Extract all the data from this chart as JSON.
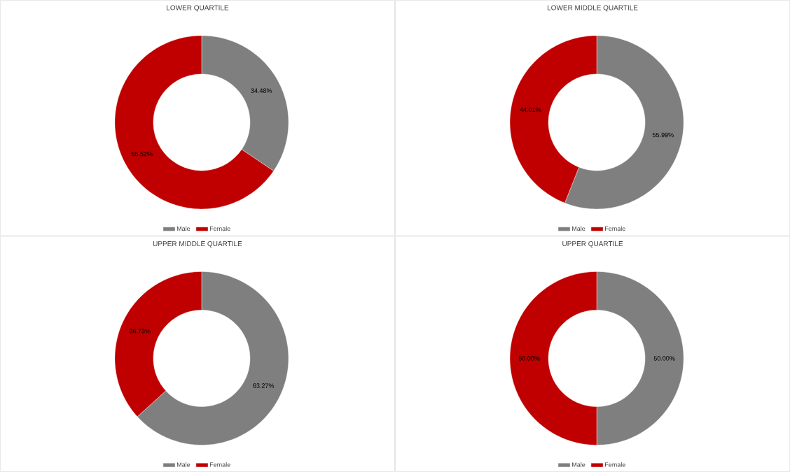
{
  "chart_data": [
    {
      "type": "donut",
      "title": "LOWER QUARTILE",
      "categories": [
        "Male",
        "Female"
      ],
      "values": [
        34.48,
        65.52
      ],
      "colors": [
        "#7f7f7f",
        "#c00000"
      ],
      "value_labels": [
        "34.48%",
        "65.52%"
      ],
      "legend": "bottom"
    },
    {
      "type": "donut",
      "title": "LOWER MIDDLE QUARTILE",
      "categories": [
        "Male",
        "Female"
      ],
      "values": [
        55.99,
        44.01
      ],
      "colors": [
        "#7f7f7f",
        "#c00000"
      ],
      "value_labels": [
        "55.99%",
        "44.01%"
      ],
      "legend": "bottom"
    },
    {
      "type": "donut",
      "title": "UPPER MIDDLE QUARTILE",
      "categories": [
        "Male",
        "Female"
      ],
      "values": [
        63.27,
        36.73
      ],
      "colors": [
        "#7f7f7f",
        "#c00000"
      ],
      "value_labels": [
        "63.27%",
        "36.73%"
      ],
      "legend": "bottom"
    },
    {
      "type": "donut",
      "title": "UPPER QUARTILE",
      "categories": [
        "Male",
        "Female"
      ],
      "values": [
        50.0,
        50.0
      ],
      "colors": [
        "#7f7f7f",
        "#c00000"
      ],
      "value_labels": [
        "50.00%",
        "50.00%"
      ],
      "legend": "bottom"
    }
  ]
}
